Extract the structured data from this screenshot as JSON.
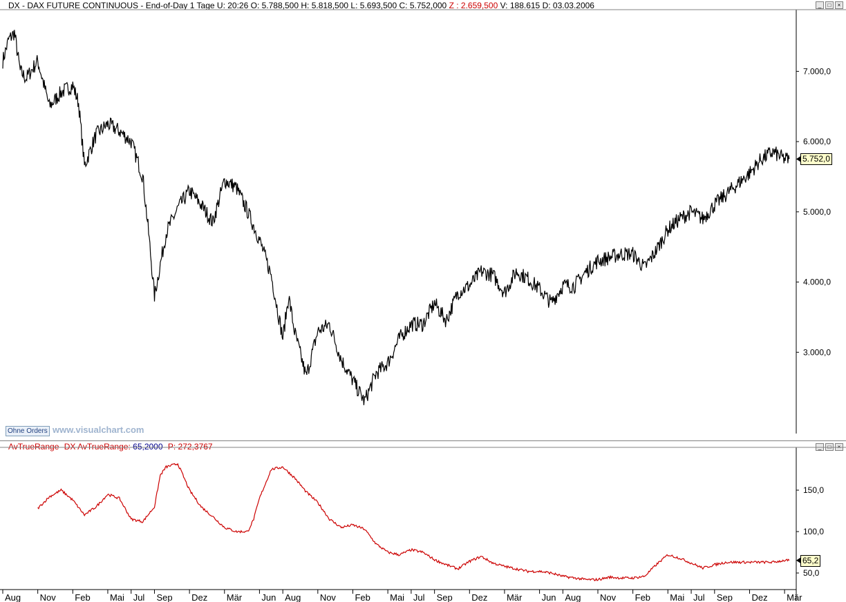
{
  "price_header": {
    "symbol": "DX",
    "name": "DAX FUTURE CONTINUOUS",
    "period": "End-of-Day 1 Tage",
    "u": "U: 20:26",
    "o": "O: 5.788,500",
    "h": "H: 5.818,500",
    "l": "L: 5.693,500",
    "c": "C: 5.752,000",
    "z": "Z : 2.659,500",
    "v": "V: 188.615",
    "d": "D: 03.03.2006"
  },
  "indicator_header": {
    "name": "AvTrueRange",
    "label": "DX AvTrueRange:",
    "value": "65,2000",
    "p": "P: 272,3767"
  },
  "buttons": {
    "ohne_orders": "Ohne Orders"
  },
  "watermark": "www.visualchart.com",
  "window_buttons": [
    "_",
    "□",
    "×"
  ],
  "colors": {
    "price": "#000000",
    "indicator": "#cc0000",
    "grid": "#d0d0d0",
    "z_text": "#cc0000",
    "indicator_value": "#00008b"
  },
  "chart_data": [
    {
      "type": "line",
      "title": "DX - DAX FUTURE CONTINUOUS",
      "y_ticks": [
        "7.000,0",
        "6.000,0",
        "5.000,0",
        "4.000,0",
        "3.000,0"
      ],
      "y_tick_values": [
        7000,
        6000,
        5000,
        4000,
        3000
      ],
      "ylim": [
        2000,
        7800
      ],
      "last_value_label": "5.752,0",
      "x_ticks": [
        "Aug",
        "Nov",
        "Feb",
        "Mai",
        "Jul",
        "Sep",
        "Dez",
        "Mär",
        "Jun",
        "Aug",
        "Nov",
        "Feb",
        "Mai",
        "Jul",
        "Sep",
        "Dez",
        "Mär",
        "Jun",
        "Aug",
        "Nov",
        "Feb",
        "Mai",
        "Jul",
        "Sep",
        "Dez",
        "Mär"
      ],
      "x_tick_positions": [
        0,
        3,
        6,
        9,
        11,
        13,
        16,
        19,
        22,
        24,
        27,
        30,
        33,
        35,
        37,
        40,
        43,
        46,
        48,
        51,
        54,
        57,
        59,
        61,
        64,
        67
      ],
      "series": [
        {
          "x": [
            0,
            0.5,
            1,
            1.5,
            2,
            3,
            4,
            5,
            6,
            6.5,
            7,
            8,
            9,
            10,
            11,
            12,
            12.5,
            13,
            14,
            15,
            16,
            17,
            18,
            19,
            20,
            21,
            22,
            23,
            24,
            24.5,
            25,
            26,
            27,
            28,
            29,
            30,
            31,
            32,
            33,
            34,
            35,
            36,
            37,
            38,
            39,
            40,
            41,
            42,
            43,
            44,
            45,
            46,
            47,
            48,
            49,
            50,
            51,
            52,
            53,
            54,
            55,
            56,
            57,
            58,
            59,
            60,
            61,
            62,
            63,
            64,
            65,
            66,
            67,
            67.4
          ],
          "values": [
            7150,
            7450,
            7550,
            7000,
            6900,
            7150,
            6500,
            6700,
            6800,
            6550,
            5650,
            6100,
            6250,
            6150,
            6000,
            5500,
            4700,
            3800,
            4700,
            5050,
            5300,
            5100,
            4850,
            5450,
            5350,
            5000,
            4600,
            4100,
            3200,
            3800,
            3300,
            2650,
            3300,
            3400,
            2900,
            2600,
            2300,
            2700,
            2850,
            3200,
            3400,
            3400,
            3700,
            3450,
            3850,
            3950,
            4150,
            4100,
            3850,
            4150,
            4050,
            3900,
            3700,
            3950,
            3950,
            4150,
            4300,
            4350,
            4400,
            4400,
            4200,
            4450,
            4750,
            4900,
            5000,
            4900,
            5100,
            5250,
            5400,
            5550,
            5750,
            5850,
            5752,
            5752
          ]
        }
      ]
    },
    {
      "type": "line",
      "title": "AvTrueRange",
      "y_ticks": [
        "150,0",
        "100,0",
        "50,0"
      ],
      "y_tick_values": [
        150,
        100,
        50
      ],
      "ylim": [
        30,
        195
      ],
      "last_value_label": "65,2",
      "series": [
        {
          "name": "DX AvTrueRange",
          "x": [
            3,
            4,
            5,
            6,
            7,
            8,
            9,
            10,
            11,
            12,
            13,
            13.5,
            14,
            15,
            16,
            17,
            18,
            19,
            20,
            21,
            21.5,
            22,
            23,
            24,
            25,
            26,
            27,
            28,
            29,
            30,
            31,
            32,
            33,
            34,
            35,
            36,
            37,
            38,
            39,
            40,
            41,
            42,
            43,
            44,
            45,
            46,
            47,
            48,
            49,
            50,
            51,
            52,
            53,
            54,
            55,
            56,
            57,
            58,
            59,
            60,
            61,
            62,
            63,
            64,
            65,
            66,
            67,
            67.4
          ],
          "values": [
            128,
            142,
            150,
            138,
            120,
            130,
            145,
            140,
            115,
            112,
            130,
            168,
            178,
            182,
            150,
            130,
            118,
            105,
            100,
            100,
            115,
            140,
            175,
            178,
            165,
            148,
            135,
            115,
            105,
            108,
            103,
            85,
            75,
            72,
            78,
            75,
            66,
            60,
            55,
            64,
            70,
            62,
            58,
            55,
            52,
            52,
            50,
            46,
            44,
            42,
            42,
            45,
            44,
            44,
            46,
            60,
            72,
            68,
            62,
            56,
            60,
            63,
            63,
            63,
            63,
            63,
            65.2,
            65.2
          ]
        }
      ]
    }
  ]
}
